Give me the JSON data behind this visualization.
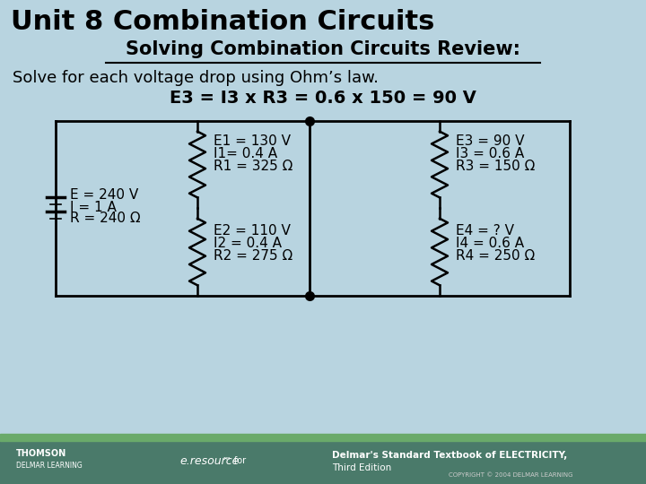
{
  "title": "Unit 8 Combination Circuits",
  "subtitle": "Solving Combination Circuits Review:",
  "body_text": "Solve for each voltage drop using Ohm’s law.",
  "formula": "E3 = I3 x R3 = 0.6 x 150 = 90 V",
  "bg_color": "#b8d4e0",
  "battery_label": [
    "E = 240 V",
    "I = 1 A",
    "R = 240 Ω"
  ],
  "r1_label": [
    "E1 = 130 V",
    "I1= 0.4 A",
    "R1 = 325 Ω"
  ],
  "r2_label": [
    "E2 = 110 V",
    "I2 = 0.4 A",
    "R2 = 275 Ω"
  ],
  "r3_label": [
    "E3 = 90 V",
    "I3 = 0.6 A",
    "R3 = 150 Ω"
  ],
  "r4_label": [
    "E4 = ? V",
    "I4 = 0.6 A",
    "R4 = 250 Ω"
  ],
  "footer_bg": "#4a7a6a",
  "footer_stripe": "#6aaa6a"
}
